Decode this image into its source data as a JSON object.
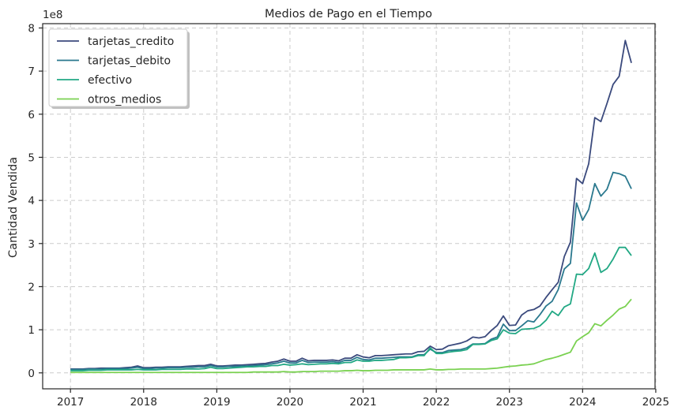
{
  "chart_data": {
    "type": "line",
    "title": "Medios de Pago en el Tiempo",
    "xlabel": "",
    "ylabel": "Cantidad Vendida",
    "offset_label": "1e8",
    "y_scale": 100000000,
    "xlim": [
      2016.62,
      2024.99
    ],
    "ylim": [
      -0.37,
      8.1
    ],
    "xticks": [
      "2017",
      "2018",
      "2019",
      "2020",
      "2021",
      "2022",
      "2023",
      "2024",
      "2025"
    ],
    "yticks": [
      "0",
      "1",
      "2",
      "3",
      "4",
      "5",
      "6",
      "7",
      "8"
    ],
    "grid": true,
    "legend_position": "top-left",
    "x": [
      "2017-01",
      "2017-02",
      "2017-03",
      "2017-04",
      "2017-05",
      "2017-06",
      "2017-07",
      "2017-08",
      "2017-09",
      "2017-10",
      "2017-11",
      "2017-12",
      "2018-01",
      "2018-02",
      "2018-03",
      "2018-04",
      "2018-05",
      "2018-06",
      "2018-07",
      "2018-08",
      "2018-09",
      "2018-10",
      "2018-11",
      "2018-12",
      "2019-01",
      "2019-02",
      "2019-03",
      "2019-04",
      "2019-05",
      "2019-06",
      "2019-07",
      "2019-08",
      "2019-09",
      "2019-10",
      "2019-11",
      "2019-12",
      "2020-01",
      "2020-02",
      "2020-03",
      "2020-04",
      "2020-05",
      "2020-06",
      "2020-07",
      "2020-08",
      "2020-09",
      "2020-10",
      "2020-11",
      "2020-12",
      "2021-01",
      "2021-02",
      "2021-03",
      "2021-04",
      "2021-05",
      "2021-06",
      "2021-07",
      "2021-08",
      "2021-09",
      "2021-10",
      "2021-11",
      "2021-12",
      "2022-01",
      "2022-02",
      "2022-03",
      "2022-04",
      "2022-05",
      "2022-06",
      "2022-07",
      "2022-08",
      "2022-09",
      "2022-10",
      "2022-11",
      "2022-12",
      "2023-01",
      "2023-02",
      "2023-03",
      "2023-04",
      "2023-05",
      "2023-06",
      "2023-07",
      "2023-08",
      "2023-09",
      "2023-10",
      "2023-11",
      "2023-12",
      "2024-01",
      "2024-02",
      "2024-03",
      "2024-04",
      "2024-05",
      "2024-06",
      "2024-07",
      "2024-08",
      "2024-09"
    ],
    "series": [
      {
        "name": "tarjetas_credito",
        "color": "#3b4a7d",
        "values": [
          0.09,
          0.09,
          0.09,
          0.1,
          0.1,
          0.11,
          0.11,
          0.11,
          0.11,
          0.12,
          0.13,
          0.16,
          0.12,
          0.12,
          0.13,
          0.13,
          0.14,
          0.14,
          0.14,
          0.15,
          0.16,
          0.17,
          0.17,
          0.2,
          0.16,
          0.16,
          0.17,
          0.18,
          0.18,
          0.19,
          0.2,
          0.21,
          0.22,
          0.25,
          0.27,
          0.32,
          0.27,
          0.27,
          0.34,
          0.28,
          0.29,
          0.29,
          0.29,
          0.3,
          0.28,
          0.34,
          0.34,
          0.42,
          0.37,
          0.35,
          0.4,
          0.4,
          0.41,
          0.42,
          0.43,
          0.44,
          0.44,
          0.49,
          0.5,
          0.62,
          0.54,
          0.55,
          0.63,
          0.66,
          0.69,
          0.74,
          0.83,
          0.81,
          0.84,
          0.98,
          1.1,
          1.32,
          1.1,
          1.11,
          1.34,
          1.44,
          1.47,
          1.55,
          1.75,
          1.93,
          2.1,
          2.7,
          3.03,
          4.51,
          4.39,
          4.85,
          5.92,
          5.83,
          6.25,
          6.69,
          6.88,
          7.71,
          7.19
        ]
      },
      {
        "name": "tarjetas_debito",
        "color": "#2a788e",
        "values": [
          0.08,
          0.08,
          0.08,
          0.09,
          0.09,
          0.09,
          0.1,
          0.1,
          0.1,
          0.1,
          0.11,
          0.13,
          0.1,
          0.1,
          0.11,
          0.11,
          0.12,
          0.12,
          0.12,
          0.13,
          0.13,
          0.14,
          0.14,
          0.17,
          0.14,
          0.14,
          0.15,
          0.15,
          0.16,
          0.16,
          0.17,
          0.18,
          0.19,
          0.21,
          0.23,
          0.27,
          0.23,
          0.23,
          0.29,
          0.24,
          0.25,
          0.25,
          0.25,
          0.26,
          0.24,
          0.29,
          0.29,
          0.36,
          0.31,
          0.3,
          0.34,
          0.34,
          0.35,
          0.36,
          0.37,
          0.37,
          0.37,
          0.42,
          0.42,
          0.55,
          0.47,
          0.47,
          0.52,
          0.53,
          0.54,
          0.58,
          0.67,
          0.67,
          0.68,
          0.78,
          0.83,
          1.13,
          0.98,
          0.98,
          1.09,
          1.21,
          1.18,
          1.35,
          1.55,
          1.66,
          1.93,
          2.41,
          2.54,
          3.94,
          3.54,
          3.79,
          4.39,
          4.1,
          4.26,
          4.65,
          4.62,
          4.56,
          4.27
        ]
      },
      {
        "name": "efectivo",
        "color": "#22a884",
        "values": [
          0.05,
          0.05,
          0.05,
          0.06,
          0.06,
          0.06,
          0.07,
          0.07,
          0.07,
          0.07,
          0.07,
          0.08,
          0.07,
          0.07,
          0.07,
          0.08,
          0.08,
          0.08,
          0.08,
          0.09,
          0.09,
          0.09,
          0.1,
          0.13,
          0.1,
          0.1,
          0.11,
          0.12,
          0.13,
          0.14,
          0.14,
          0.15,
          0.15,
          0.17,
          0.17,
          0.2,
          0.18,
          0.19,
          0.21,
          0.19,
          0.2,
          0.21,
          0.21,
          0.22,
          0.21,
          0.24,
          0.24,
          0.3,
          0.27,
          0.27,
          0.29,
          0.29,
          0.3,
          0.31,
          0.35,
          0.35,
          0.36,
          0.4,
          0.4,
          0.58,
          0.45,
          0.45,
          0.48,
          0.5,
          0.51,
          0.54,
          0.66,
          0.66,
          0.67,
          0.75,
          0.79,
          1.0,
          0.92,
          0.91,
          1.01,
          1.02,
          1.03,
          1.09,
          1.22,
          1.43,
          1.33,
          1.53,
          1.6,
          2.29,
          2.28,
          2.42,
          2.78,
          2.33,
          2.42,
          2.64,
          2.91,
          2.91,
          2.72
        ]
      },
      {
        "name": "otros_medios",
        "color": "#7ad151",
        "values": [
          0.01,
          0.01,
          0.01,
          0.01,
          0.01,
          0.01,
          0.01,
          0.01,
          0.01,
          0.01,
          0.01,
          0.01,
          0.01,
          0.01,
          0.01,
          0.01,
          0.01,
          0.01,
          0.01,
          0.01,
          0.01,
          0.01,
          0.01,
          0.01,
          0.01,
          0.01,
          0.01,
          0.01,
          0.01,
          0.01,
          0.02,
          0.02,
          0.02,
          0.02,
          0.02,
          0.03,
          0.02,
          0.02,
          0.03,
          0.03,
          0.03,
          0.04,
          0.04,
          0.04,
          0.04,
          0.05,
          0.05,
          0.06,
          0.05,
          0.05,
          0.06,
          0.06,
          0.06,
          0.07,
          0.07,
          0.07,
          0.07,
          0.07,
          0.07,
          0.09,
          0.07,
          0.07,
          0.08,
          0.08,
          0.09,
          0.09,
          0.09,
          0.09,
          0.09,
          0.1,
          0.11,
          0.13,
          0.15,
          0.16,
          0.18,
          0.19,
          0.21,
          0.26,
          0.31,
          0.34,
          0.38,
          0.43,
          0.48,
          0.74,
          0.84,
          0.93,
          1.14,
          1.09,
          1.22,
          1.34,
          1.48,
          1.54,
          1.71
        ]
      }
    ]
  }
}
